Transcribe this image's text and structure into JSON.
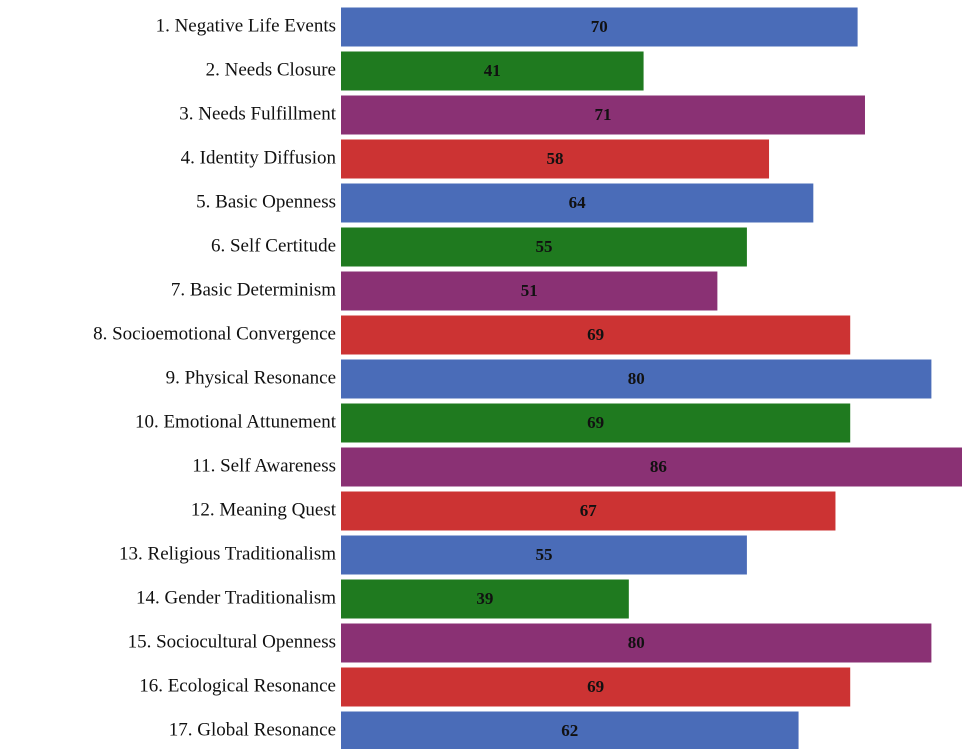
{
  "chart_data": {
    "type": "bar",
    "orientation": "horizontal",
    "categories": [
      "1. Negative Life Events",
      "2. Needs Closure",
      "3. Needs Fulfillment",
      "4. Identity Diffusion",
      "5. Basic Openness",
      "6. Self Certitude",
      "7. Basic Determinism",
      "8. Socioemotional Convergence",
      "9. Physical Resonance",
      "10. Emotional Attunement",
      "11. Self Awareness",
      "12. Meaning Quest",
      "13. Religious Traditionalism",
      "14. Gender Traditionalism",
      "15. Sociocultural Openness",
      "16. Ecological Resonance",
      "17. Global Resonance"
    ],
    "values": [
      70,
      41,
      71,
      58,
      64,
      55,
      51,
      69,
      80,
      69,
      86,
      67,
      55,
      39,
      80,
      69,
      62
    ],
    "colors": [
      "#4a6cb8",
      "#1f7a1f",
      "#8a3174",
      "#cc3333",
      "#4a6cb8",
      "#1f7a1f",
      "#8a3174",
      "#cc3333",
      "#4a6cb8",
      "#1f7a1f",
      "#8a3174",
      "#cc3333",
      "#4a6cb8",
      "#1f7a1f",
      "#8a3174",
      "#cc3333",
      "#4a6cb8"
    ]
  }
}
